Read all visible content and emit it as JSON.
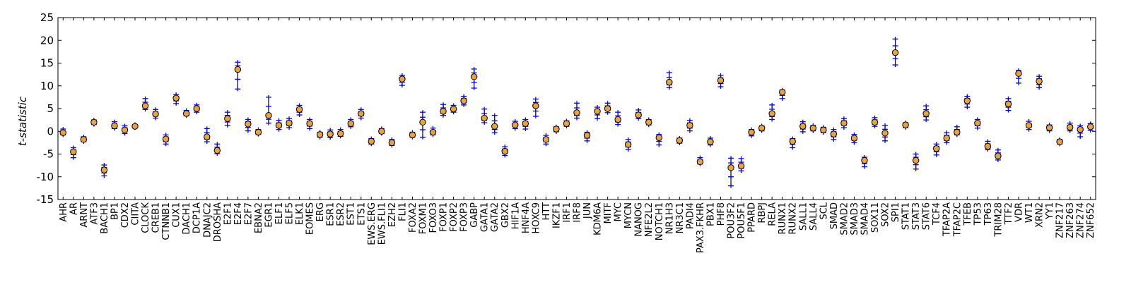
{
  "chart_data": {
    "type": "scatter",
    "ylabel": "t-statistic",
    "ylim": [
      -15,
      25
    ],
    "yticks": [
      -15,
      -10,
      -5,
      0,
      5,
      10,
      15,
      20,
      25
    ],
    "grid": false,
    "colors": {
      "mean_fill": "#e8a33d",
      "mean_edge": "#000000",
      "replicate_mark": "#0000ff",
      "whisker": "#000000"
    },
    "categories": [
      "AHR",
      "AR",
      "ARNT",
      "ATF3",
      "BACH1",
      "BP1",
      "CDX2",
      "CIITA",
      "CLOCK",
      "CREB1",
      "CTNNB1",
      "CUX1",
      "DACH1",
      "DCP1A",
      "DNAJC2",
      "DROSHA",
      "E2F1",
      "E2F4",
      "E2F7",
      "EBNA2",
      "EGR1",
      "ELF1",
      "ELF5",
      "ELK1",
      "EOMES",
      "ERG",
      "ESR1",
      "ESR2",
      "EST1",
      "ETS1",
      "EWS.ERG",
      "EWS.FLI1",
      "EZH2",
      "FLI1",
      "FOXA2",
      "FOXM1",
      "FOXO3",
      "FOXP1",
      "FOXP2",
      "FOXP3",
      "GABP",
      "GATA1",
      "GATA2",
      "GBX2",
      "HIF1A",
      "HNF4A",
      "HOXC9",
      "HTT",
      "IKZF1",
      "IRF1",
      "IRF8",
      "JUN",
      "KDM6A",
      "MITF",
      "MYC",
      "MYCN",
      "NANOG",
      "NFE2L2",
      "NOTCH1",
      "NR1H3",
      "NR3C1",
      "PADI4",
      "PAX3.FKHR",
      "PBX1",
      "PHF8",
      "POU3F2",
      "POU5F1",
      "PPARD",
      "RBPJ",
      "RELA",
      "RUNX1",
      "RUNX2",
      "SALL1",
      "SALL4",
      "SCL",
      "SMAD",
      "SMAD2",
      "SMAD3",
      "SMAD4",
      "SOX11",
      "SOX2",
      "SPI1",
      "STAT1",
      "STAT3",
      "STAT6",
      "TCF4",
      "TFAP2A",
      "TFAP2C",
      "TFEB",
      "TP53",
      "TP63",
      "TRIM28",
      "TTF2",
      "VDR",
      "WT1",
      "XRN2",
      "YY1",
      "ZNF217",
      "ZNF263",
      "ZNF274",
      "ZNF652"
    ],
    "mean": [
      -0.3,
      -4.5,
      -1.8,
      2.0,
      -8.5,
      1.2,
      0.3,
      1.1,
      5.6,
      3.8,
      -1.7,
      7.3,
      3.9,
      5.0,
      -1.2,
      -4.2,
      2.8,
      13.6,
      1.6,
      -0.2,
      3.5,
      1.3,
      1.8,
      4.8,
      1.7,
      -0.7,
      -0.6,
      -0.5,
      1.7,
      3.9,
      -2.2,
      0.0,
      -2.5,
      11.5,
      -0.8,
      2.0,
      -0.2,
      4.4,
      4.9,
      6.7,
      12.0,
      2.9,
      1.1,
      -4.4,
      1.4,
      1.7,
      5.6,
      -1.8,
      0.5,
      1.7,
      4.1,
      -0.9,
      4.4,
      5.0,
      2.6,
      -2.9,
      3.6,
      2.0,
      -1.4,
      10.8,
      -2.0,
      1.3,
      -6.7,
      -2.3,
      11.2,
      -8.0,
      -7.6,
      -0.2,
      0.7,
      3.9,
      8.6,
      -2.2,
      1.1,
      0.7,
      0.3,
      -0.6,
      1.8,
      -1.5,
      -6.4,
      2.0,
      -0.4,
      17.3,
      1.4,
      -6.4,
      3.9,
      -3.8,
      -1.5,
      -0.2,
      6.7,
      1.8,
      -3.3,
      -5.4,
      6.0,
      12.7,
      1.3,
      11.0,
      0.8,
      -2.3,
      0.9,
      0.4,
      1.0
    ],
    "min": [
      -0.8,
      -5.8,
      -2.3,
      1.5,
      -9.8,
      0.6,
      -0.5,
      0.8,
      4.8,
      2.9,
      -2.8,
      6.1,
      3.4,
      4.2,
      -2.3,
      -4.9,
      1.3,
      9.3,
      0.1,
      -0.7,
      1.8,
      0.4,
      0.8,
      3.6,
      0.6,
      -1.3,
      -1.4,
      -1.1,
      1.0,
      2.9,
      -2.8,
      -0.5,
      -3.1,
      10.1,
      -1.3,
      -1.3,
      -0.8,
      3.5,
      4.2,
      5.8,
      9.5,
      1.9,
      -0.3,
      -5.3,
      0.6,
      0.5,
      3.3,
      -2.8,
      -0.1,
      1.1,
      2.9,
      -2.1,
      2.8,
      4.1,
      1.5,
      -4.0,
      2.8,
      1.4,
      -3.0,
      9.6,
      -2.6,
      0.1,
      -7.2,
      -3.0,
      9.8,
      -12.0,
      -8.7,
      -1.0,
      0.1,
      2.6,
      7.2,
      -3.6,
      -0.1,
      0.1,
      -0.3,
      -1.8,
      0.8,
      -2.5,
      -7.8,
      1.1,
      -2.1,
      14.6,
      0.8,
      -8.3,
      2.5,
      -5.2,
      -2.5,
      -0.8,
      5.3,
      0.7,
      -4.0,
      -6.3,
      4.6,
      10.6,
      0.4,
      9.6,
      0.1,
      -2.8,
      0.1,
      -1.2,
      0.2
    ],
    "max": [
      0.5,
      -3.6,
      -1.2,
      2.5,
      -7.4,
      2.1,
      1.2,
      1.5,
      7.2,
      4.8,
      -0.8,
      8.1,
      4.6,
      5.8,
      0.6,
      -2.8,
      4.2,
      15.2,
      2.6,
      0.4,
      7.5,
      2.4,
      2.8,
      5.7,
      2.6,
      -0.2,
      0.3,
      0.4,
      2.6,
      4.8,
      -1.6,
      0.6,
      -1.8,
      12.3,
      -0.2,
      4.2,
      0.7,
      5.9,
      5.7,
      7.7,
      13.7,
      4.9,
      3.5,
      -3.4,
      2.2,
      2.6,
      7.1,
      -0.9,
      1.0,
      2.3,
      6.2,
      -0.2,
      5.3,
      6.2,
      4.2,
      -1.8,
      4.7,
      2.6,
      -0.7,
      12.9,
      -1.5,
      2.4,
      -5.8,
      -1.5,
      12.3,
      -5.9,
      -6.0,
      0.4,
      1.2,
      5.8,
      9.1,
      -1.6,
      2.1,
      1.3,
      0.9,
      0.4,
      2.8,
      -0.7,
      -5.7,
      3.0,
      1.3,
      20.3,
      1.9,
      -5.0,
      5.6,
      -2.8,
      -0.3,
      1.0,
      7.7,
      2.6,
      -2.2,
      -4.1,
      7.2,
      13.4,
      2.2,
      12.1,
      1.4,
      -1.8,
      1.8,
      1.2,
      1.7
    ]
  }
}
